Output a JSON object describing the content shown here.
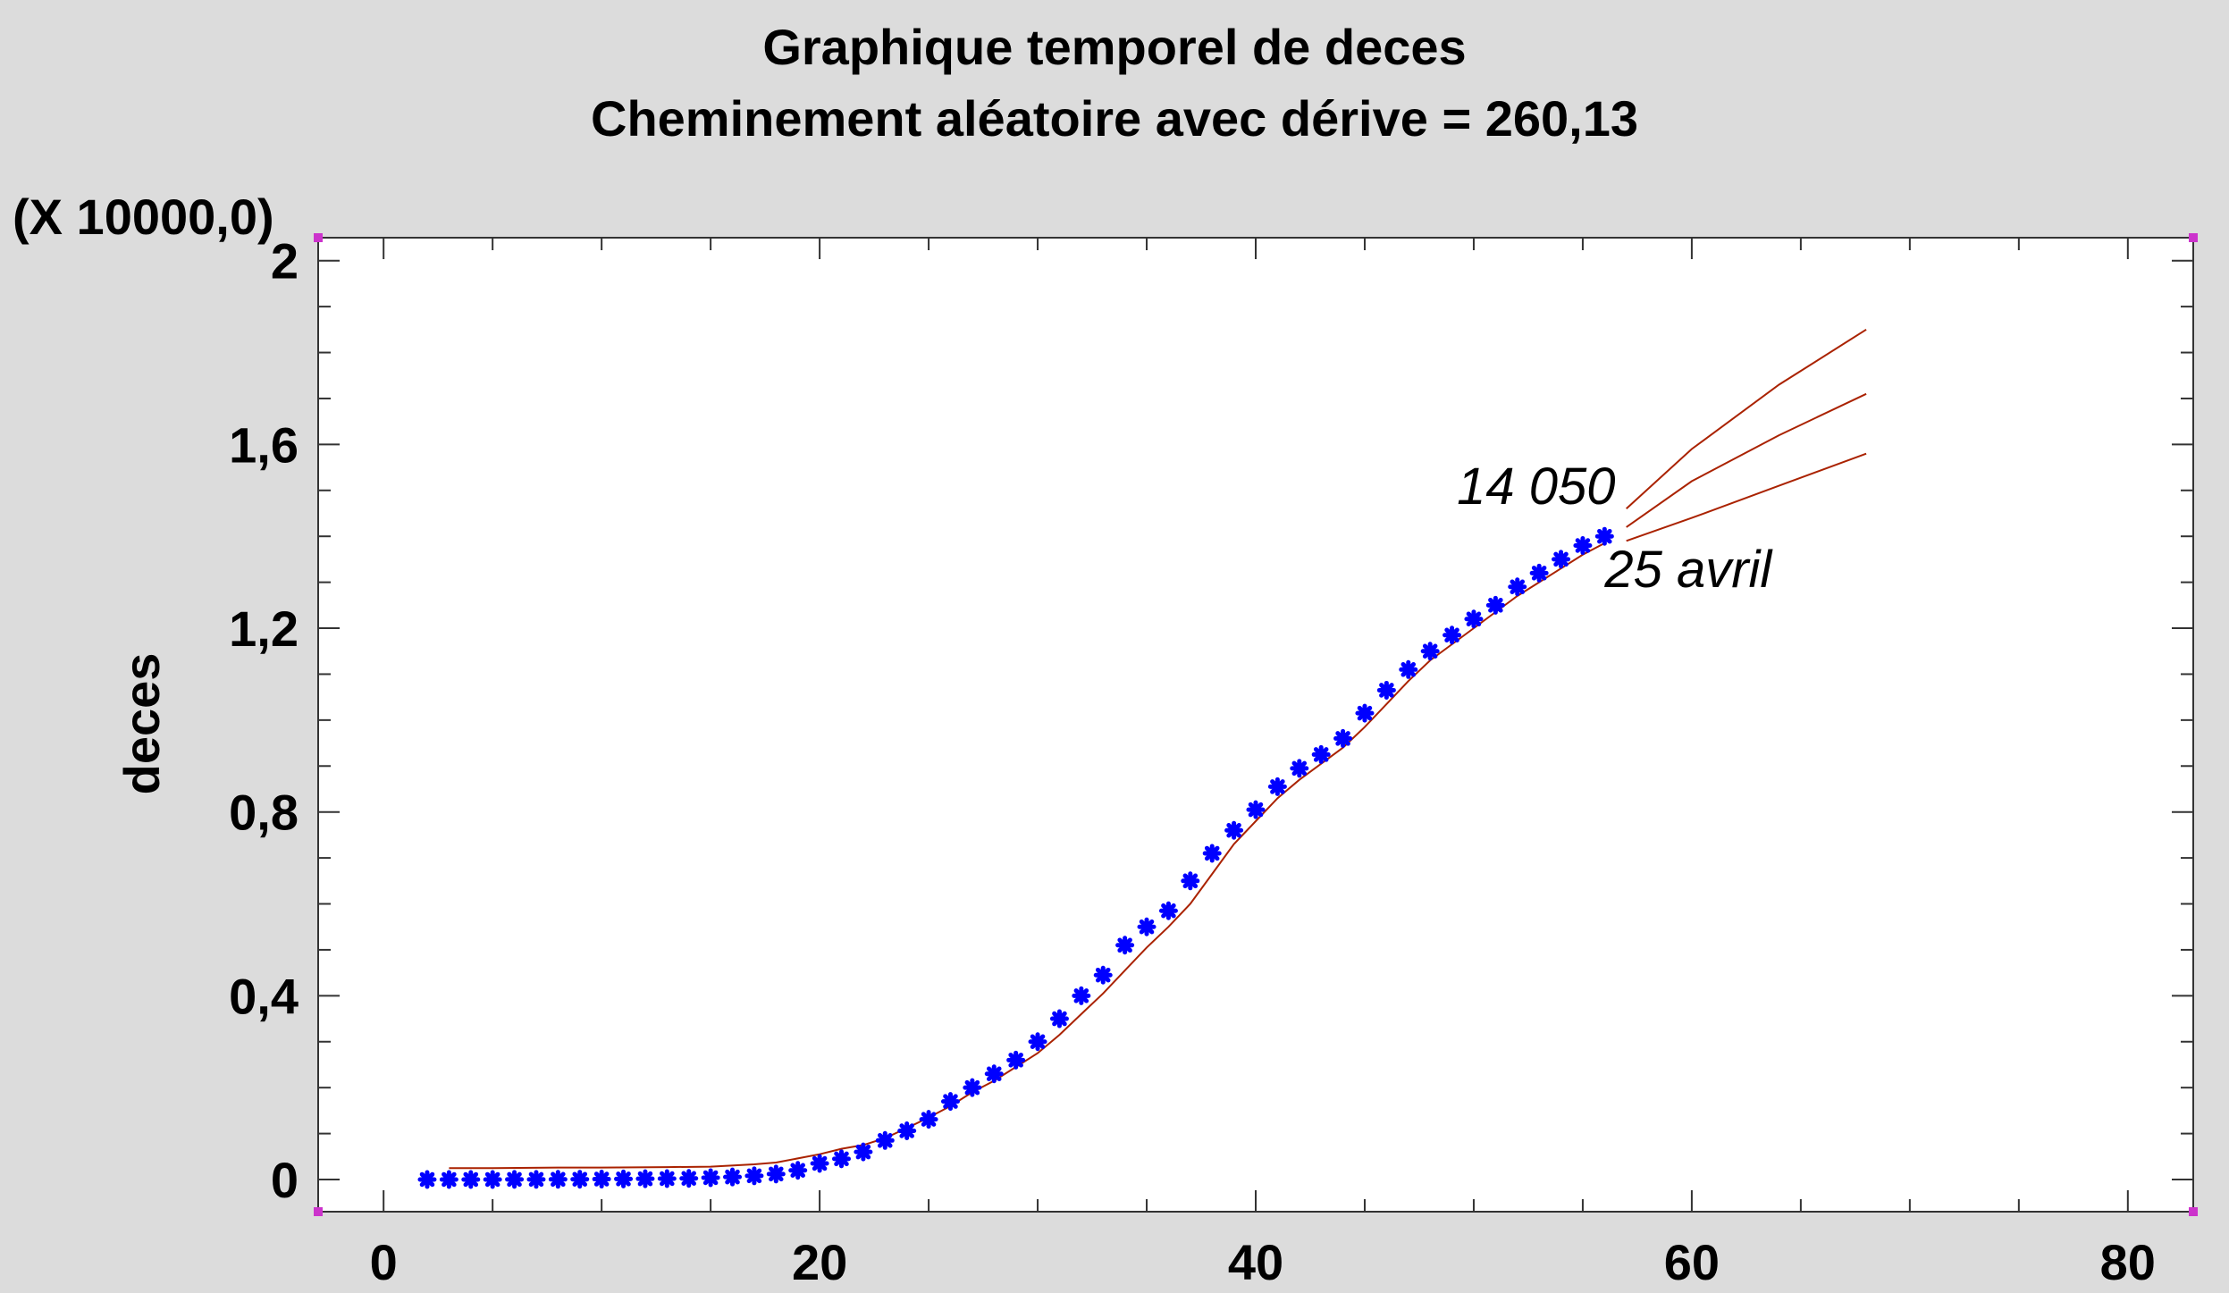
{
  "chart_data": {
    "type": "line",
    "title": "Graphique temporel de deces",
    "subtitle": "Cheminement aléatoire avec dérive = 260,13",
    "ylabel": "deces",
    "xlabel": "",
    "y_multiplier_label": "(X 10000,0)",
    "xlim": [
      -3,
      83
    ],
    "ylim": [
      -0.07,
      2.05
    ],
    "x_ticks": [
      0,
      20,
      40,
      60,
      80
    ],
    "x_tick_labels": [
      "0",
      "20",
      "40",
      "60",
      "80"
    ],
    "y_ticks": [
      0,
      0.4,
      0.8,
      1.2,
      1.6,
      2.0
    ],
    "y_tick_labels": [
      "0",
      "0,4",
      "0,8",
      "1,2",
      "1,6",
      "2"
    ],
    "grid": false,
    "series": [
      {
        "role": "observed",
        "marker": "asterisk",
        "color": "#0000ff",
        "x": [
          2,
          3,
          4,
          5,
          6,
          7,
          8,
          9,
          10,
          11,
          12,
          13,
          14,
          15,
          16,
          17,
          18,
          19,
          20,
          21,
          22,
          23,
          24,
          25,
          26,
          27,
          28,
          29,
          30,
          31,
          32,
          33,
          34,
          35,
          36,
          37,
          38,
          39,
          40,
          41,
          42,
          43,
          44,
          45,
          46,
          47,
          48,
          49,
          50,
          51,
          52,
          53,
          54,
          55,
          56
        ],
        "y": [
          0.0001,
          0.0001,
          0.0001,
          0.0001,
          0.0002,
          0.0003,
          0.0004,
          0.0006,
          0.0009,
          0.0012,
          0.0016,
          0.002,
          0.0024,
          0.004,
          0.0055,
          0.008,
          0.012,
          0.02,
          0.035,
          0.045,
          0.06,
          0.085,
          0.106,
          0.131,
          0.17,
          0.2,
          0.23,
          0.26,
          0.3,
          0.35,
          0.4,
          0.445,
          0.51,
          0.55,
          0.585,
          0.65,
          0.71,
          0.76,
          0.805,
          0.855,
          0.895,
          0.925,
          0.96,
          1.015,
          1.065,
          1.11,
          1.15,
          1.185,
          1.22,
          1.25,
          1.29,
          1.32,
          1.35,
          1.38,
          1.4
        ]
      },
      {
        "role": "fitted",
        "color": "#aa2200",
        "x": [
          3,
          5,
          8,
          10,
          13,
          15,
          17,
          18,
          20,
          21,
          22,
          23,
          24,
          25,
          26,
          27,
          28,
          29,
          30,
          31,
          32,
          33,
          34,
          35,
          36,
          37,
          38,
          39,
          40,
          41,
          42,
          43,
          44,
          45,
          46,
          47,
          48,
          49,
          50,
          51,
          52,
          53,
          54,
          55,
          56
        ],
        "y": [
          0.025,
          0.025,
          0.026,
          0.026,
          0.027,
          0.028,
          0.033,
          0.037,
          0.055,
          0.067,
          0.075,
          0.09,
          0.112,
          0.135,
          0.16,
          0.19,
          0.215,
          0.245,
          0.275,
          0.315,
          0.36,
          0.405,
          0.455,
          0.505,
          0.55,
          0.6,
          0.665,
          0.73,
          0.78,
          0.83,
          0.87,
          0.905,
          0.94,
          0.985,
          1.035,
          1.085,
          1.13,
          1.165,
          1.2,
          1.235,
          1.27,
          1.3,
          1.33,
          1.36,
          1.385
        ]
      },
      {
        "role": "forecast-upper",
        "color": "#aa2200",
        "x": [
          57,
          60,
          64,
          68
        ],
        "y": [
          1.46,
          1.59,
          1.73,
          1.85
        ]
      },
      {
        "role": "forecast",
        "color": "#aa2200",
        "x": [
          57,
          60,
          64,
          68
        ],
        "y": [
          1.42,
          1.52,
          1.62,
          1.71
        ]
      },
      {
        "role": "forecast-lower",
        "color": "#aa2200",
        "x": [
          57,
          60,
          64,
          68
        ],
        "y": [
          1.39,
          1.44,
          1.51,
          1.58
        ]
      }
    ],
    "annotations": [
      {
        "text": "14 050",
        "x": 56.5,
        "y": 1.47,
        "anchor": "end"
      },
      {
        "text": "25 avril",
        "x": 56,
        "y": 1.29,
        "anchor": "start"
      }
    ],
    "colors": {
      "background": "#dcdcdc",
      "plot_area": "#ffffff",
      "markers": "#0000ff",
      "lines": "#aa2200",
      "corner_markers": "#cc33cc"
    }
  }
}
